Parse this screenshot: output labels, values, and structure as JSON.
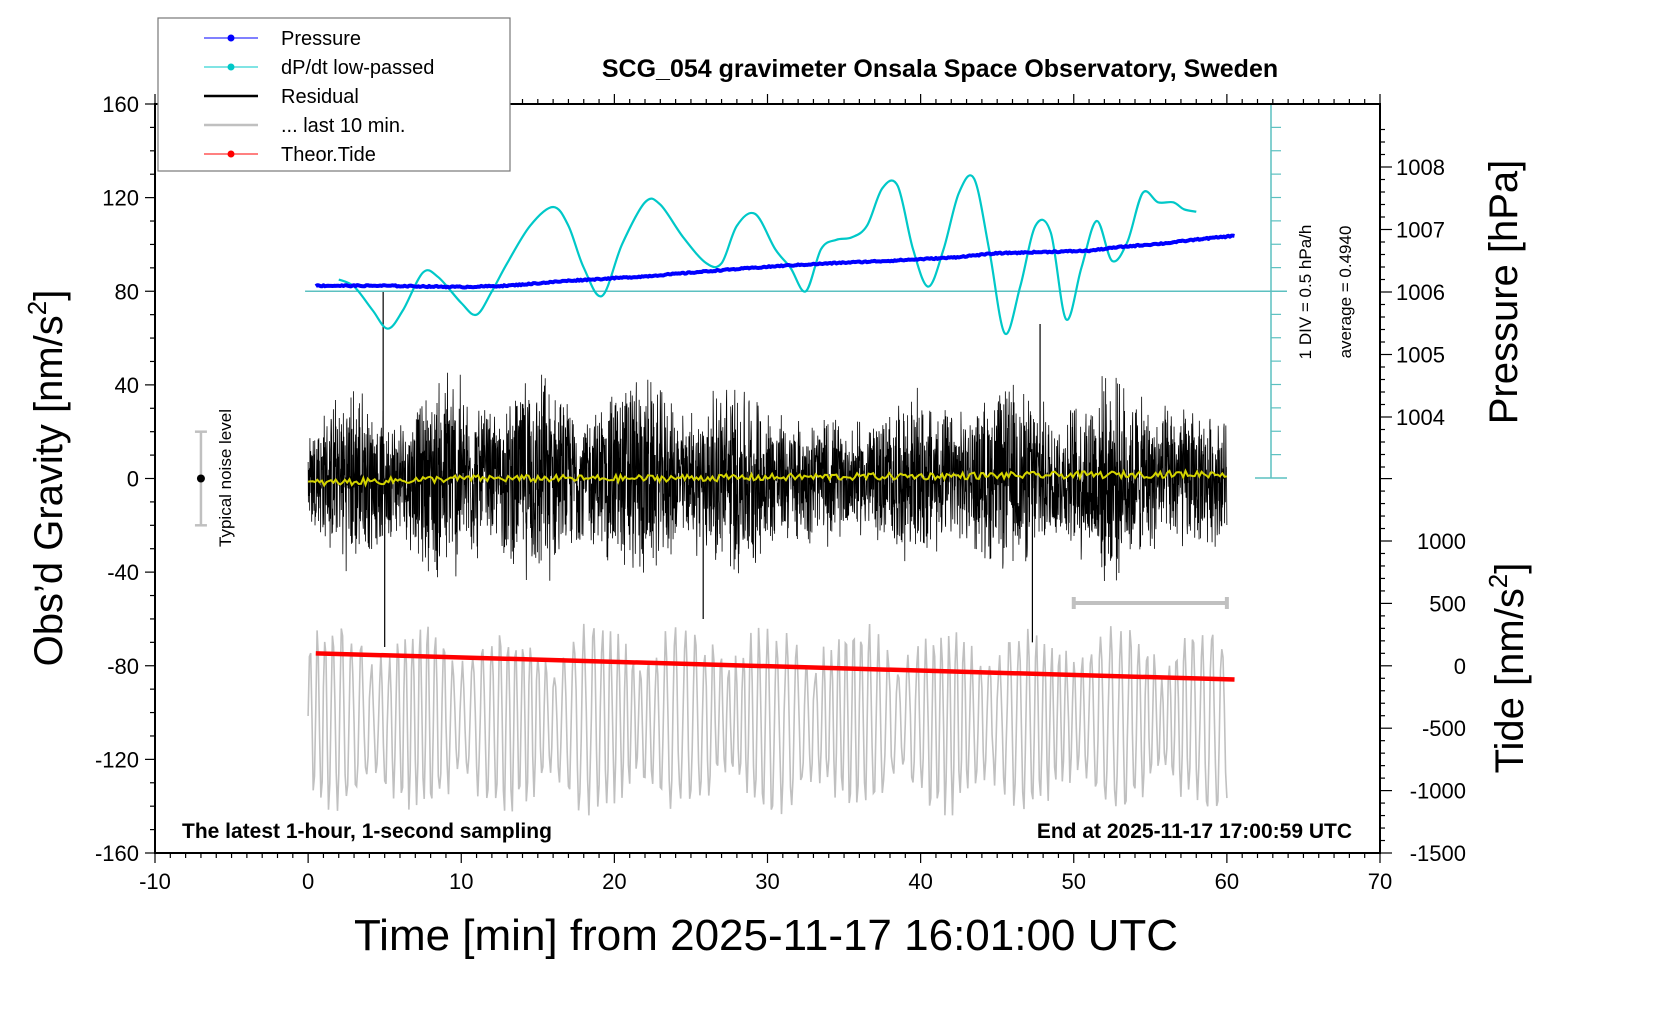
{
  "chart_data": {
    "type": "line",
    "title": "SCG_054 gravimeter Onsala Space Observatory, Sweden",
    "xlabel": "Time [min] from 2025-11-17 16:01:00 UTC",
    "ylabel_left": "Obs’d Gravity [nm/s",
    "ylabel_right_top": "Pressure [hPa]",
    "ylabel_right_bottom": "Tide [nm/s",
    "superscript": "2",
    "xlim": [
      -10,
      70
    ],
    "ylim_left": [
      -160,
      160
    ],
    "ylim_pressure": [
      1002,
      1008.85
    ],
    "ylim_tide": [
      -1500,
      1000
    ],
    "x_ticks": [
      "-10",
      "0",
      "10",
      "20",
      "30",
      "40",
      "50",
      "60",
      "70"
    ],
    "y_ticks_left": [
      "160",
      "120",
      "80",
      "40",
      "0",
      "-40",
      "-80",
      "-120",
      "-160"
    ],
    "y_ticks_pressure": [
      "1008",
      "1007",
      "1006",
      "1005",
      "1004"
    ],
    "y_ticks_tide": [
      "1000",
      "500",
      "0",
      "-500",
      "-1000",
      "-1500"
    ],
    "legend": {
      "placement": "top-left",
      "entries": [
        {
          "label": "Pressure",
          "color": "#0000ff",
          "style": "line-dot"
        },
        {
          "label": "dP/dt low-passed",
          "color": "#00c8c8",
          "style": "line-dot"
        },
        {
          "label": "Residual",
          "color": "#000000",
          "style": "line"
        },
        {
          "label": "... last 10 min.",
          "color": "#c0c0c0",
          "style": "line"
        },
        {
          "label": "Theor.Tide",
          "color": "#ff0000",
          "style": "line-dot"
        }
      ]
    },
    "annotations": {
      "noise": "Typical noise level",
      "noise_level": {
        "center": 0,
        "low": -20,
        "high": 20,
        "x": -7
      },
      "div": "1 DIV = 0.5 hPa/h",
      "average": "average = 0.4940",
      "bottom_left": "The latest 1-hour, 1-second sampling",
      "bottom_right": "End at 2025-11-17 17:00:59 UTC",
      "last10_bar": {
        "x_start": 50,
        "x_end": 60
      }
    },
    "series": [
      {
        "name": "Pressure",
        "axis": "pressure",
        "color": "#0000ff",
        "x": [
          0.5,
          5,
          10,
          13,
          17,
          22,
          27,
          31,
          35,
          38,
          42,
          45,
          48,
          51,
          53,
          56,
          58,
          60.5
        ],
        "y": [
          1006.1,
          1006.1,
          1006.08,
          1006.1,
          1006.18,
          1006.25,
          1006.35,
          1006.42,
          1006.47,
          1006.5,
          1006.55,
          1006.62,
          1006.64,
          1006.66,
          1006.72,
          1006.78,
          1006.84,
          1006.9
        ]
      },
      {
        "name": "dP/dt low-passed",
        "axis": "left",
        "color": "#00c8c8",
        "x": [
          2,
          3,
          4.2,
          5.2,
          6.2,
          7.5,
          8.5,
          10,
          11,
          12,
          13,
          14.5,
          16,
          17,
          18,
          19.2,
          20.5,
          22,
          23,
          24.5,
          26,
          27,
          28,
          29.2,
          30.5,
          31.5,
          32.5,
          33.5,
          34.5,
          35.5,
          36.5,
          37.5,
          38.5,
          39.5,
          40.5,
          41.5,
          42.5,
          43.5,
          44.5,
          45.5,
          46.5,
          47.5,
          48.5,
          49.5,
          50.5,
          51.5,
          52.5,
          53.5,
          54.5,
          55.5,
          56.5,
          57.2,
          58
        ],
        "y": [
          85,
          82,
          72,
          64,
          72,
          88,
          86,
          75,
          70,
          80,
          92,
          108,
          116,
          108,
          90,
          78,
          100,
          118,
          117,
          103,
          92,
          92,
          108,
          113,
          98,
          90,
          80,
          98,
          102,
          103,
          108,
          124,
          125,
          98,
          82,
          98,
          122,
          128,
          97,
          62,
          82,
          108,
          105,
          68,
          90,
          110,
          93,
          101,
          122,
          118,
          118,
          115,
          114
        ]
      },
      {
        "name": "Residual",
        "axis": "left",
        "color": "#000000",
        "x_range": [
          0,
          60
        ],
        "envelope_amplitude": [
          25,
          35,
          45,
          30,
          28,
          40,
          55,
          38,
          30,
          45,
          50,
          35,
          30,
          45,
          50,
          40,
          30,
          38,
          48,
          40,
          30,
          28,
          30,
          25,
          28,
          35,
          40,
          32,
          30,
          40,
          45,
          35,
          30,
          40,
          50,
          40,
          32,
          35,
          30,
          30
        ],
        "spikes": [
          {
            "x": 4.9,
            "y": 80
          },
          {
            "x": 5.0,
            "y": -72
          },
          {
            "x": 25.8,
            "y": -60
          },
          {
            "x": 47.3,
            "y": -70
          },
          {
            "x": 47.8,
            "y": 66
          }
        ]
      },
      {
        "name": "Residual smoothed",
        "axis": "left",
        "color": "#d4d400",
        "x": [
          0,
          10,
          20,
          30,
          40,
          50,
          60
        ],
        "y": [
          -2,
          0,
          0,
          0.5,
          1,
          1.5,
          2
        ]
      },
      {
        "name": "... last 10 min.",
        "axis": "left",
        "color": "#c0c0c0",
        "x_range": [
          0,
          60
        ],
        "center": -103,
        "amplitude": 38
      },
      {
        "name": "Theor.Tide",
        "axis": "tide",
        "color": "#ff0000",
        "x": [
          0.5,
          60.5
        ],
        "y": [
          100,
          -110
        ]
      }
    ],
    "grid": false
  }
}
